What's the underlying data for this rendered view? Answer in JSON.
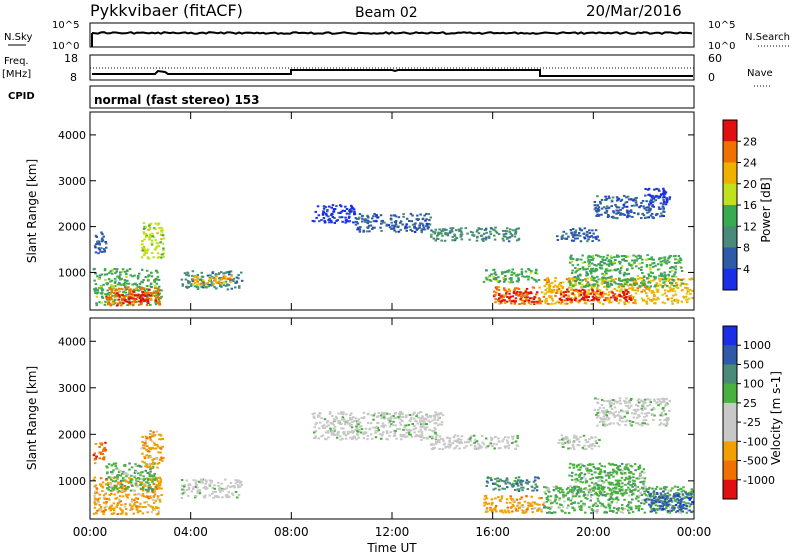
{
  "header": {
    "station": "Pykkvibaer (fitACF)",
    "beam": "Beam 02",
    "date": "20/Mar/2016"
  },
  "left_labels": {
    "nsky": "N.Sky",
    "freq": "Freq.",
    "mhz": "[MHz]",
    "cpid": "CPID"
  },
  "right_labels": {
    "nsearch": "N.Search",
    "nave": "Nave"
  },
  "noise_ticks": {
    "top": "10^5",
    "bottom": "10^0"
  },
  "freq_ticks": {
    "top": "18",
    "bottom": "8"
  },
  "nave_ticks": {
    "top": "60",
    "bottom": "0"
  },
  "cpid_text": "normal (fast stereo) 153",
  "colors": {
    "power": [
      "#1a2ee6",
      "#2e5aa8",
      "#4a8a78",
      "#3aaa50",
      "#c0e020",
      "#f0b000",
      "#f07000",
      "#e01010"
    ],
    "velocity": [
      "#1a2ee6",
      "#2e5aa8",
      "#4a8a78",
      "#4ab040",
      "#c8c8c8",
      "#c8c8c8",
      "#f0a000",
      "#f07000",
      "#e01010"
    ]
  },
  "chart_data": [
    {
      "type": "heatmap",
      "name": "power",
      "ylabel": "Slant Range [km]",
      "yticks": [
        "1000",
        "2000",
        "3000",
        "4000"
      ],
      "colorbar_label": "Power [dB]",
      "colorbar_ticks": [
        "4",
        "8",
        "12",
        "16",
        "20",
        "24",
        "28"
      ],
      "x_range_hours": [
        0,
        24
      ],
      "y_range_km": [
        180,
        4500
      ],
      "regions": [
        {
          "h0": 0.1,
          "h1": 0.6,
          "r0": 1400,
          "r1": 1900,
          "c": 1
        },
        {
          "h0": 0.1,
          "h1": 2.8,
          "r0": 300,
          "r1": 1100,
          "c": 3
        },
        {
          "h0": 0.6,
          "h1": 2.8,
          "r0": 300,
          "r1": 700,
          "c": 6
        },
        {
          "h0": 1.0,
          "h1": 2.4,
          "r0": 350,
          "r1": 600,
          "c": 7
        },
        {
          "h0": 2.0,
          "h1": 2.9,
          "r0": 1300,
          "r1": 2100,
          "c": 4
        },
        {
          "h0": 3.6,
          "h1": 6.0,
          "r0": 650,
          "r1": 1050,
          "c": 2
        },
        {
          "h0": 4.0,
          "h1": 5.6,
          "r0": 750,
          "r1": 950,
          "c": 5
        },
        {
          "h0": 8.8,
          "h1": 10.5,
          "r0": 2100,
          "r1": 2500,
          "c": 0
        },
        {
          "h0": 10.5,
          "h1": 13.5,
          "r0": 1900,
          "r1": 2300,
          "c": 1
        },
        {
          "h0": 13.5,
          "h1": 17.0,
          "r0": 1700,
          "r1": 2000,
          "c": 2
        },
        {
          "h0": 15.6,
          "h1": 17.8,
          "r0": 800,
          "r1": 1100,
          "c": 3
        },
        {
          "h0": 16.0,
          "h1": 18.0,
          "r0": 330,
          "r1": 700,
          "c": 6
        },
        {
          "h0": 16.2,
          "h1": 17.8,
          "r0": 380,
          "r1": 600,
          "c": 7
        },
        {
          "h0": 18.0,
          "h1": 23.9,
          "r0": 330,
          "r1": 900,
          "c": 5
        },
        {
          "h0": 18.6,
          "h1": 21.5,
          "r0": 400,
          "r1": 650,
          "c": 7
        },
        {
          "h0": 19.0,
          "h1": 23.5,
          "r0": 700,
          "r1": 1400,
          "c": 3
        },
        {
          "h0": 18.5,
          "h1": 20.2,
          "r0": 1700,
          "r1": 2000,
          "c": 1
        },
        {
          "h0": 20.0,
          "h1": 22.8,
          "r0": 2200,
          "r1": 2700,
          "c": 1
        },
        {
          "h0": 22.0,
          "h1": 23.0,
          "r0": 2500,
          "r1": 2850,
          "c": 0
        }
      ]
    },
    {
      "type": "heatmap",
      "name": "velocity",
      "ylabel": "Slant Range [km]",
      "yticks": [
        "1000",
        "2000",
        "3000",
        "4000"
      ],
      "xticks": [
        "00:00",
        "04:00",
        "08:00",
        "12:00",
        "16:00",
        "20:00",
        "00:00"
      ],
      "xlabel": "Time UT",
      "colorbar_label": "Velocity [m s-1]",
      "colorbar_ticks": [
        "1000",
        "500",
        "100",
        "25",
        "-25",
        "-100",
        "-500",
        "-1000"
      ],
      "x_range_hours": [
        0,
        24
      ],
      "y_range_km": [
        180,
        4500
      ],
      "regions": [
        {
          "h0": 0.1,
          "h1": 2.8,
          "r0": 300,
          "r1": 1100,
          "c": 6
        },
        {
          "h0": 0.6,
          "h1": 2.6,
          "r0": 800,
          "r1": 1400,
          "c": 3
        },
        {
          "h0": 0.1,
          "h1": 0.6,
          "r0": 1400,
          "r1": 1900,
          "c": 7
        },
        {
          "h0": 2.0,
          "h1": 2.9,
          "r0": 1300,
          "r1": 2100,
          "c": 6
        },
        {
          "h0": 3.6,
          "h1": 6.0,
          "r0": 650,
          "r1": 1050,
          "c": 4
        },
        {
          "h0": 8.8,
          "h1": 14.0,
          "r0": 1900,
          "r1": 2500,
          "c": 4
        },
        {
          "h0": 13.5,
          "h1": 17.0,
          "r0": 1700,
          "r1": 2000,
          "c": 4
        },
        {
          "h0": 15.6,
          "h1": 17.8,
          "r0": 800,
          "r1": 1100,
          "c": 2
        },
        {
          "h0": 15.6,
          "h1": 18.0,
          "r0": 330,
          "r1": 700,
          "c": 6
        },
        {
          "h0": 18.0,
          "h1": 23.9,
          "r0": 330,
          "r1": 900,
          "c": 3
        },
        {
          "h0": 19.0,
          "h1": 22.0,
          "r0": 700,
          "r1": 1400,
          "c": 3
        },
        {
          "h0": 22.0,
          "h1": 23.9,
          "r0": 350,
          "r1": 800,
          "c": 1
        },
        {
          "h0": 18.5,
          "h1": 20.2,
          "r0": 1700,
          "r1": 2000,
          "c": 4
        },
        {
          "h0": 20.0,
          "h1": 23.0,
          "r0": 2200,
          "r1": 2800,
          "c": 4
        }
      ]
    }
  ]
}
